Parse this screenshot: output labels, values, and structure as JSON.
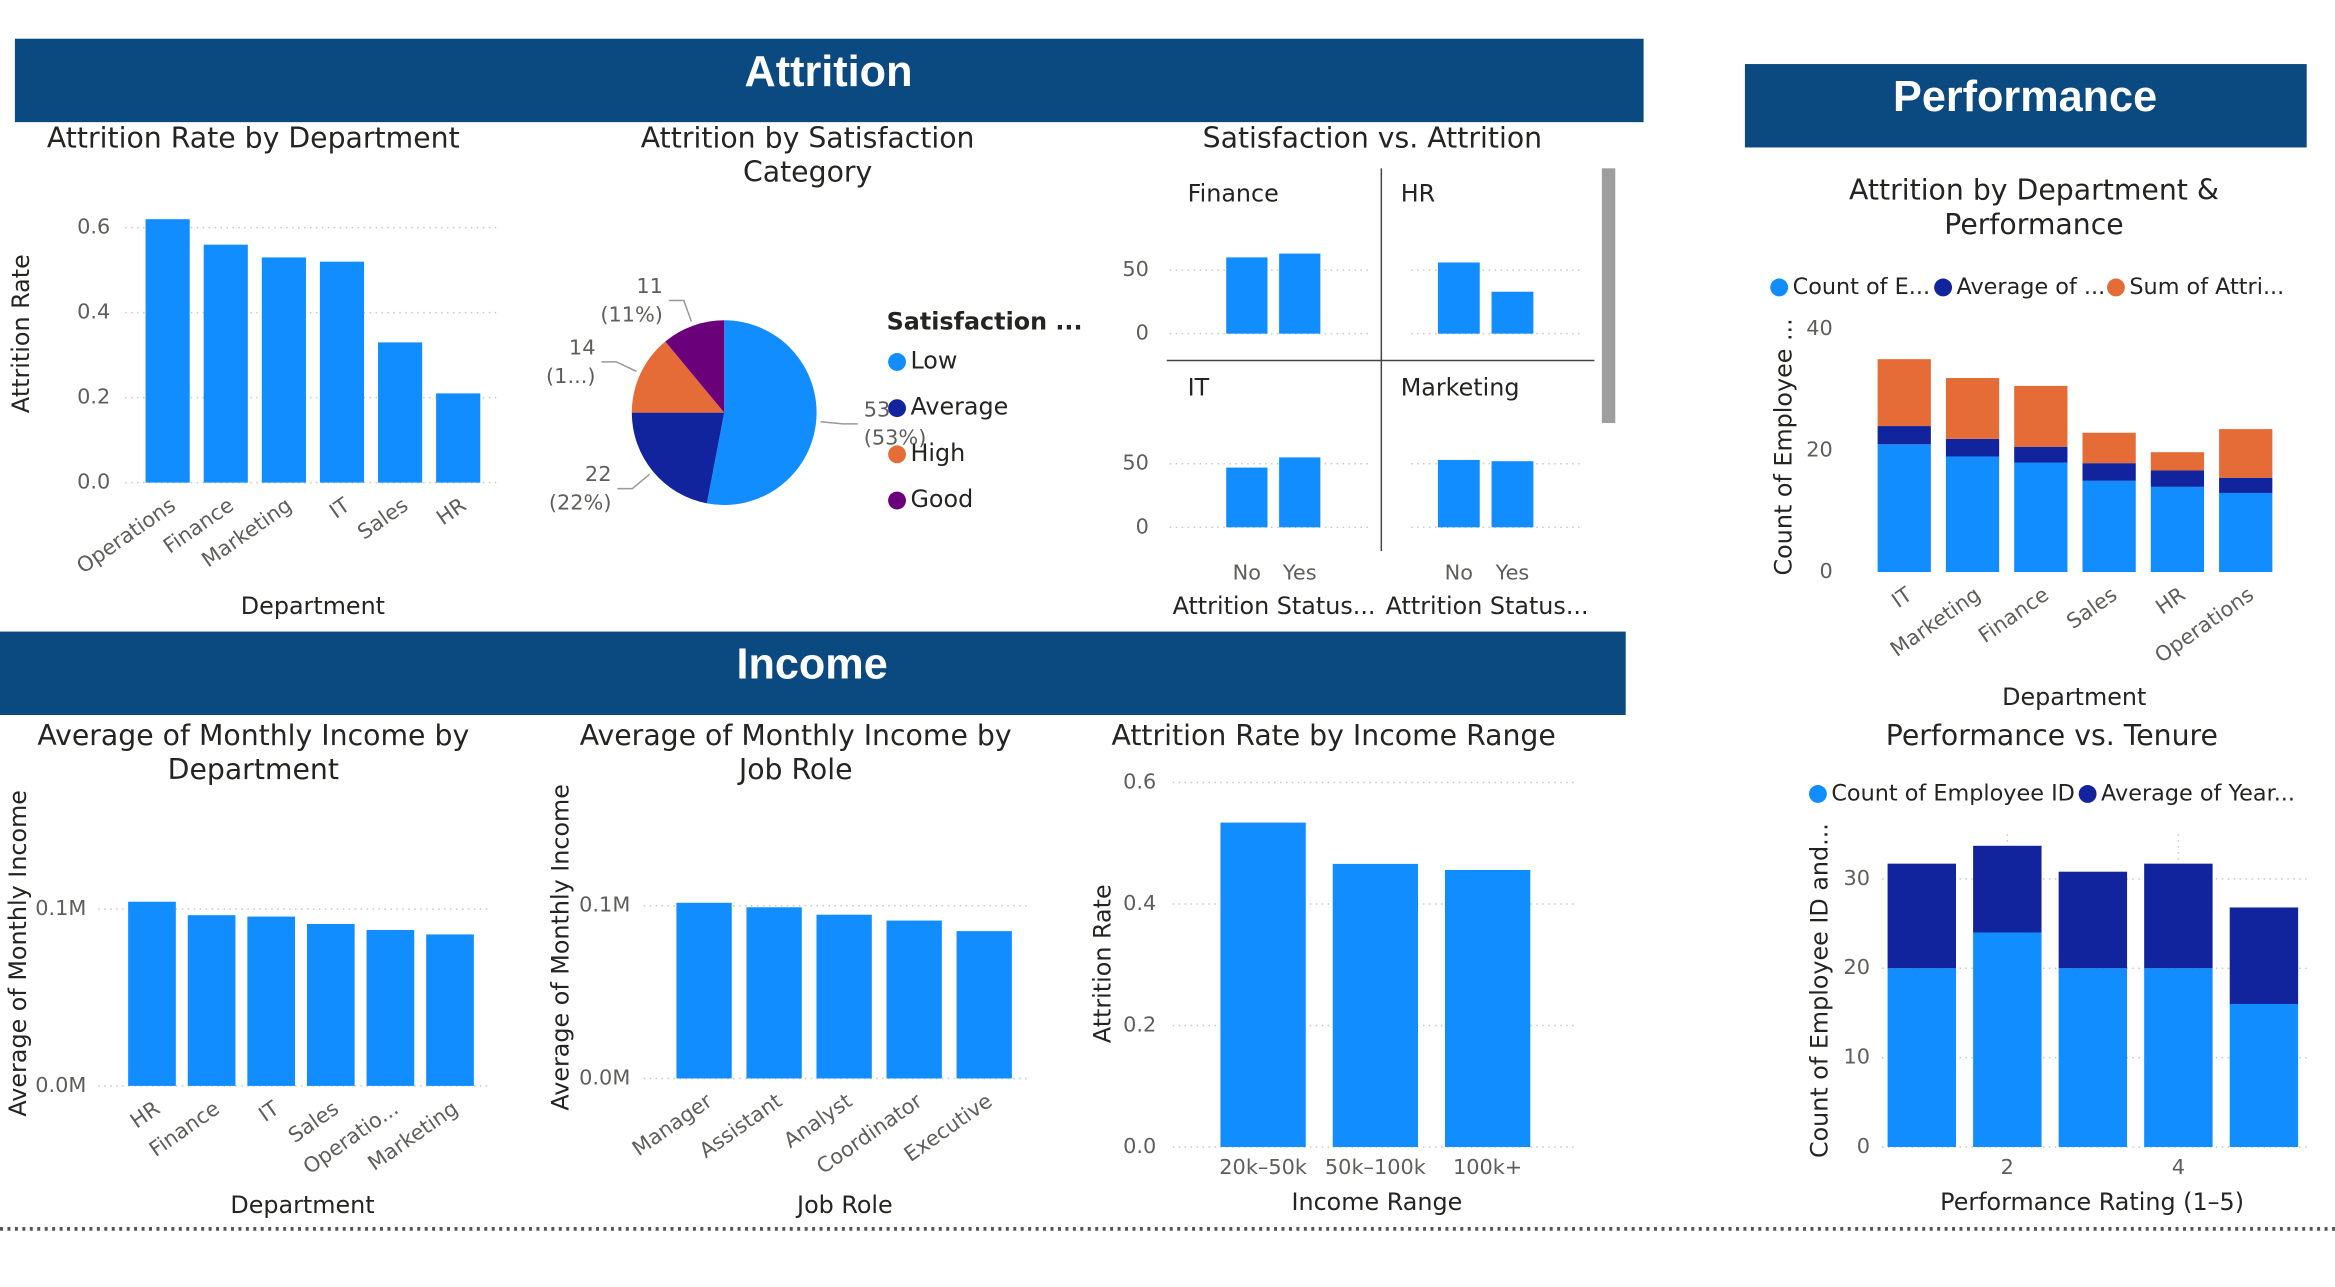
{
  "sections": {
    "attrition": "Attrition",
    "income": "Income",
    "performance": "Performance"
  },
  "chart_data": [
    {
      "type": "bar",
      "title": "Attrition Rate by Department",
      "x_label": "Department",
      "y_label": "Attrition Rate",
      "categories": [
        "Operations",
        "Finance",
        "Marketing",
        "IT",
        "Sales",
        "HR"
      ],
      "values": [
        0.62,
        0.56,
        0.53,
        0.52,
        0.33,
        0.21
      ],
      "color": "#118dff",
      "ylim": [
        0,
        0.645
      ],
      "yticks": [
        {
          "value": 0,
          "label": "0.0"
        },
        0.2,
        0.4,
        0.6
      ],
      "grid": true,
      "rotated_labels": true
    },
    {
      "type": "pie",
      "title": "Attrition by Satisfaction Category",
      "legend_title": "Satisfaction ...",
      "categories": [
        "Low",
        "Average",
        "High",
        "Good"
      ],
      "values": [
        53,
        22,
        14,
        11
      ],
      "percent_labels": [
        "(53%)",
        "(22%)",
        "(1...)",
        "(11%)"
      ],
      "colors": [
        "#118dff",
        "#12239e",
        "#e66c37",
        "#6b007b"
      ]
    },
    {
      "type": "multiples",
      "title": "Satisfaction vs. Attrition",
      "x_label": "Attrition Status...",
      "categories": [
        "No",
        "Yes"
      ],
      "panels": [
        {
          "name": "Finance",
          "values": [
            60,
            63
          ]
        },
        {
          "name": "HR",
          "values": [
            56,
            33
          ]
        },
        {
          "name": "IT",
          "values": [
            47,
            55
          ]
        },
        {
          "name": "Marketing",
          "values": [
            53,
            52
          ]
        }
      ],
      "color": "#118dff",
      "ylim": [
        0,
        75
      ],
      "yticks": [
        0,
        50
      ],
      "grid": true
    },
    {
      "type": "stacked",
      "title": "Attrition by Department & Performance",
      "x_label": "Department",
      "y_label": "Count of Employee ...",
      "categories": [
        "IT",
        "Marketing",
        "Finance",
        "Sales",
        "HR",
        "Operations"
      ],
      "series": [
        {
          "name": "Count of E...",
          "color": "#118dff",
          "values": [
            21,
            19,
            18,
            15,
            14,
            13
          ]
        },
        {
          "name": "Average of ...",
          "color": "#12239e",
          "values": [
            3.0,
            2.9,
            2.6,
            2.9,
            2.7,
            2.5
          ]
        },
        {
          "name": "Sum of Attri...",
          "color": "#e66c37",
          "values": [
            11,
            10,
            10,
            5,
            3,
            8
          ]
        }
      ],
      "ylim": [
        0,
        41.4
      ],
      "yticks": [
        0,
        20,
        40
      ],
      "grid": false,
      "rotated_labels": true
    },
    {
      "type": "bar",
      "title": "Average of Monthly Income by Department",
      "x_label": "Department",
      "y_label": "Average of Monthly Income",
      "categories": [
        "HR",
        "Finance",
        "IT",
        "Sales",
        "Operatio...",
        "Marketing"
      ],
      "values": [
        104200,
        96600,
        95800,
        91600,
        88200,
        85700
      ],
      "color": "#118dff",
      "ylim": [
        0,
        134000
      ],
      "yticks": [
        {
          "value": 0,
          "label": "0.0M"
        },
        {
          "value": 100000,
          "label": "0.1M"
        }
      ],
      "grid": true,
      "rotated_labels": true
    },
    {
      "type": "bar",
      "title": "Average of Monthly Income by Job Role",
      "x_label": "Job Role",
      "y_label": "Average of Monthly Income",
      "categories": [
        "Manager",
        "Assistant",
        "Analyst",
        "Coordinator",
        "Executive"
      ],
      "values": [
        101700,
        99100,
        94800,
        91400,
        85300
      ],
      "color": "#118dff",
      "ylim": [
        0,
        132800
      ],
      "yticks": [
        {
          "value": 0,
          "label": "0.0M"
        },
        {
          "value": 100000,
          "label": "0.1M"
        }
      ],
      "grid": true,
      "rotated_labels": true
    },
    {
      "type": "bar",
      "title": "Attrition Rate by Income Range",
      "x_label": "Income Range",
      "y_label": "Attrition Rate",
      "categories": [
        "20k–50k",
        "50k–100k",
        "100k+"
      ],
      "values": [
        0.534,
        0.466,
        0.456
      ],
      "color": "#118dff",
      "ylim": [
        0,
        0.613
      ],
      "yticks": [
        {
          "value": 0,
          "label": "0.0"
        },
        0.2,
        0.4,
        0.6
      ],
      "grid": true,
      "rotated_labels": false
    },
    {
      "type": "stacked",
      "title": "Performance vs. Tenure",
      "x_label": "Performance Rating (1–5)",
      "y_label": "Count of Employee ID and...",
      "x": [
        1,
        2,
        3,
        4,
        5
      ],
      "xlim": [
        0.5,
        5.5
      ],
      "xticks": [
        2,
        4
      ],
      "series": [
        {
          "name": "Count of Employee ID",
          "color": "#118dff",
          "values": [
            20,
            24,
            20,
            20,
            16
          ]
        },
        {
          "name": "Average of Year...",
          "color": "#12239e",
          "values": [
            11.7,
            9.7,
            10.8,
            11.7,
            10.8
          ]
        }
      ],
      "ylim": [
        0,
        35
      ],
      "yticks": [
        0,
        10,
        20,
        30
      ],
      "grid": true
    }
  ]
}
